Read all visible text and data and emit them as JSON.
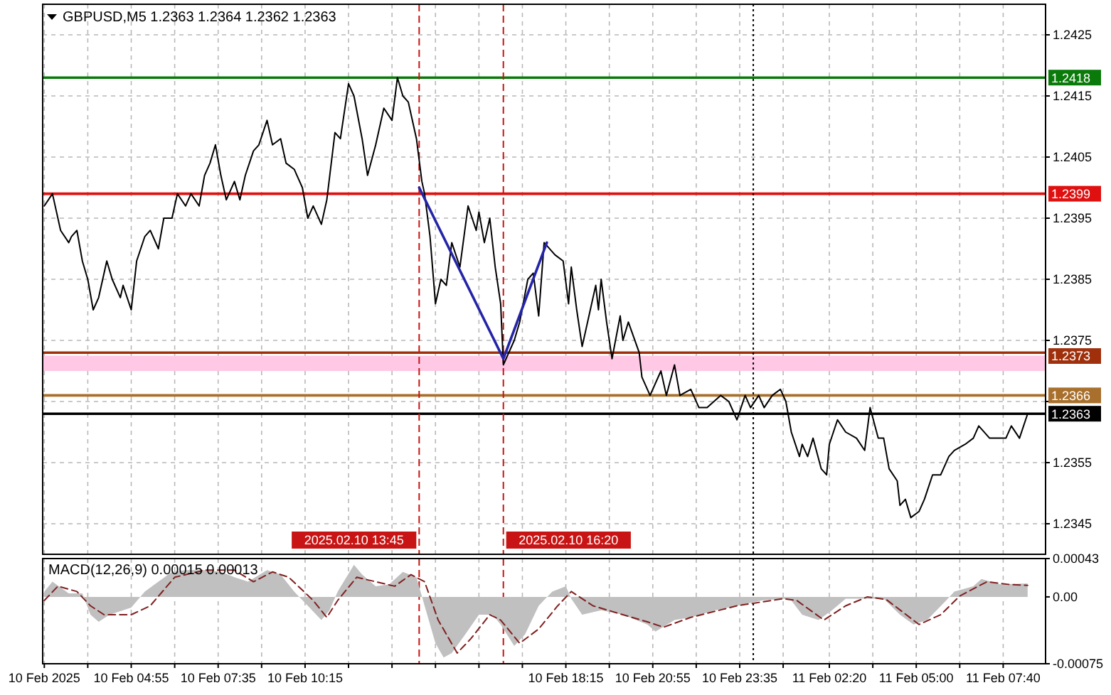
{
  "chart_data": [
    {
      "type": "line",
      "title": "GBPUSD,M5  1.2363 1.2364 1.2362 1.2363",
      "xlim": [
        "2025-02-10T02:12",
        "2025-02-11T08:58"
      ],
      "ylim": [
        1.234,
        1.243
      ],
      "yticks": [
        1.2345,
        1.2355,
        {
          "value": 1.2365,
          "label": null
        },
        1.2375,
        1.2385,
        1.2395,
        1.2405,
        1.2415,
        1.2425
      ],
      "xticks": [
        {
          "value": "2025-02-10T02:15",
          "label": null
        },
        {
          "value": "2025-02-10T03:35",
          "label": null
        },
        {
          "value": "2025-02-10T04:55",
          "label": null
        },
        {
          "value": "2025-02-10T06:15",
          "label": null
        },
        {
          "value": "2025-02-10T07:35",
          "label": null
        },
        {
          "value": "2025-02-10T08:55",
          "label": null
        },
        {
          "value": "2025-02-10T10:15",
          "label": null
        },
        {
          "value": "2025-02-10T11:35",
          "label": null
        },
        {
          "value": "2025-02-10T12:55",
          "label": null
        },
        {
          "value": "2025-02-10T14:15",
          "label": null
        },
        {
          "value": "2025-02-10T15:35",
          "label": null
        },
        {
          "value": "2025-02-10T16:55",
          "label": null
        },
        {
          "value": "2025-02-10T18:15",
          "label": null
        },
        {
          "value": "2025-02-10T19:35",
          "label": null
        },
        {
          "value": "2025-02-10T20:55",
          "label": null
        },
        {
          "value": "2025-02-10T22:15",
          "label": null
        },
        {
          "value": "2025-02-10T23:35",
          "label": null
        },
        {
          "value": "2025-02-11T00:55",
          "label": null
        },
        {
          "value": "2025-02-11T02:20",
          "label": null
        },
        {
          "value": "2025-02-11T03:40",
          "label": null
        },
        {
          "value": "2025-02-11T05:00",
          "label": null
        },
        {
          "value": "2025-02-11T06:20",
          "label": null
        },
        {
          "value": "2025-02-11T07:40",
          "label": null
        }
      ],
      "tick_labels": "y",
      "grid": true,
      "series": [
        {
          "color": "#000000",
          "x": [
            "2025-02-10T02:15",
            "2025-02-10T02:30",
            "2025-02-10T02:45",
            "2025-02-10T03:00",
            "2025-02-10T03:05",
            "2025-02-10T03:15",
            "2025-02-10T03:25",
            "2025-02-10T03:35",
            "2025-02-10T03:45",
            "2025-02-10T03:55",
            "2025-02-10T04:10",
            "2025-02-10T04:20",
            "2025-02-10T04:35",
            "2025-02-10T04:40",
            "2025-02-10T04:55",
            "2025-02-10T05:05",
            "2025-02-10T05:20",
            "2025-02-10T05:30",
            "2025-02-10T05:45",
            "2025-02-10T05:55",
            "2025-02-10T06:10",
            "2025-02-10T06:20",
            "2025-02-10T06:35",
            "2025-02-10T06:45",
            "2025-02-10T07:00",
            "2025-02-10T07:10",
            "2025-02-10T07:20",
            "2025-02-10T07:30",
            "2025-02-10T07:40",
            "2025-02-10T07:50",
            "2025-02-10T08:05",
            "2025-02-10T08:15",
            "2025-02-10T08:25",
            "2025-02-10T08:40",
            "2025-02-10T08:50",
            "2025-02-10T09:05",
            "2025-02-10T09:15",
            "2025-02-10T09:30",
            "2025-02-10T09:40",
            "2025-02-10T09:55",
            "2025-02-10T10:00",
            "2025-02-10T10:10",
            "2025-02-10T10:20",
            "2025-02-10T10:30",
            "2025-02-10T10:45",
            "2025-02-10T10:55",
            "2025-02-10T11:10",
            "2025-02-10T11:20",
            "2025-02-10T11:35",
            "2025-02-10T11:45",
            "2025-02-10T12:00",
            "2025-02-10T12:10",
            "2025-02-10T12:25",
            "2025-02-10T12:40",
            "2025-02-10T12:55",
            "2025-02-10T13:05",
            "2025-02-10T13:15",
            "2025-02-10T13:25",
            "2025-02-10T13:40",
            "2025-02-10T13:50",
            "2025-02-10T13:55",
            "2025-02-10T14:05",
            "2025-02-10T14:15",
            "2025-02-10T14:25",
            "2025-02-10T14:35",
            "2025-02-10T14:45",
            "2025-02-10T15:00",
            "2025-02-10T15:15",
            "2025-02-10T15:30",
            "2025-02-10T15:35",
            "2025-02-10T15:45",
            "2025-02-10T15:55",
            "2025-02-10T16:05",
            "2025-02-10T16:15",
            "2025-02-10T16:20",
            "2025-02-10T16:40",
            "2025-02-10T16:50",
            "2025-02-10T17:05",
            "2025-02-10T17:15",
            "2025-02-10T17:25",
            "2025-02-10T17:35",
            "2025-02-10T17:55",
            "2025-02-10T18:10",
            "2025-02-10T18:20",
            "2025-02-10T18:25",
            "2025-02-10T18:35",
            "2025-02-10T18:45",
            "2025-02-10T19:00",
            "2025-02-10T19:10",
            "2025-02-10T19:15",
            "2025-02-10T19:20",
            "2025-02-10T19:30",
            "2025-02-10T19:40",
            "2025-02-10T19:55",
            "2025-02-10T20:00",
            "2025-02-10T20:10",
            "2025-02-10T20:30",
            "2025-02-10T20:35",
            "2025-02-10T20:50",
            "2025-02-10T21:10",
            "2025-02-10T21:20",
            "2025-02-10T21:35",
            "2025-02-10T21:45",
            "2025-02-10T22:05",
            "2025-02-10T22:20",
            "2025-02-10T22:35",
            "2025-02-10T23:00",
            "2025-02-10T23:15",
            "2025-02-10T23:30",
            "2025-02-10T23:45",
            "2025-02-10T23:55",
            "2025-02-11T00:10",
            "2025-02-11T00:20",
            "2025-02-11T00:35",
            "2025-02-11T00:50",
            "2025-02-11T01:00",
            "2025-02-11T01:10",
            "2025-02-11T01:25",
            "2025-02-11T01:30",
            "2025-02-11T01:40",
            "2025-02-11T01:50",
            "2025-02-11T02:05",
            "2025-02-11T02:15",
            "2025-02-11T02:20",
            "2025-02-11T02:35",
            "2025-02-11T02:50",
            "2025-02-11T03:10",
            "2025-02-11T03:25",
            "2025-02-11T03:35",
            "2025-02-11T03:50",
            "2025-02-11T04:00",
            "2025-02-11T04:10",
            "2025-02-11T04:25",
            "2025-02-11T04:30",
            "2025-02-11T04:40",
            "2025-02-11T04:50",
            "2025-02-11T05:05",
            "2025-02-11T05:15",
            "2025-02-11T05:30",
            "2025-02-11T05:45",
            "2025-02-11T06:00",
            "2025-02-11T06:10",
            "2025-02-11T06:30",
            "2025-02-11T06:45",
            "2025-02-11T06:55",
            "2025-02-11T07:15",
            "2025-02-11T07:30",
            "2025-02-11T07:45",
            "2025-02-11T07:55",
            "2025-02-11T08:10",
            "2025-02-11T08:25"
          ],
          "values": [
            1.2397,
            1.2399,
            1.2393,
            1.2391,
            1.2392,
            1.2393,
            1.2388,
            1.2385,
            1.238,
            1.2382,
            1.2388,
            1.2385,
            1.2382,
            1.2384,
            1.238,
            1.2388,
            1.2392,
            1.2393,
            1.239,
            1.2395,
            1.2395,
            1.2399,
            1.2397,
            1.2399,
            1.2397,
            1.2402,
            1.2404,
            1.2407,
            1.2402,
            1.2398,
            1.2401,
            1.2398,
            1.2402,
            1.2406,
            1.2407,
            1.2411,
            1.2407,
            1.2408,
            1.2404,
            1.2403,
            1.2402,
            1.24,
            1.2395,
            1.2397,
            1.2394,
            1.2398,
            1.2409,
            1.2408,
            1.2417,
            1.2415,
            1.2408,
            1.2402,
            1.2407,
            1.2413,
            1.2411,
            1.2418,
            1.2415,
            1.2414,
            1.2408,
            1.2401,
            1.2399,
            1.2392,
            1.2381,
            1.2385,
            1.2384,
            1.2391,
            1.2387,
            1.2397,
            1.2393,
            1.2396,
            1.2391,
            1.2395,
            1.2387,
            1.2381,
            1.2371,
            1.2375,
            1.2378,
            1.2385,
            1.2386,
            1.2379,
            1.2391,
            1.2389,
            1.2388,
            1.2381,
            1.2387,
            1.238,
            1.2374,
            1.238,
            1.2384,
            1.238,
            1.2385,
            1.2378,
            1.2372,
            1.2379,
            1.2375,
            1.2378,
            1.2373,
            1.2369,
            1.2366,
            1.237,
            1.2366,
            1.2371,
            1.2366,
            1.2367,
            1.2364,
            1.2364,
            1.2366,
            1.2365,
            1.2362,
            1.2366,
            1.2364,
            1.2366,
            1.2364,
            1.2366,
            1.2367,
            1.2365,
            1.236,
            1.2356,
            1.2358,
            1.2356,
            1.2359,
            1.2354,
            1.2353,
            1.2358,
            1.2362,
            1.236,
            1.2359,
            1.2357,
            1.2364,
            1.2359,
            1.2359,
            1.2354,
            1.2352,
            1.2348,
            1.2349,
            1.2346,
            1.2347,
            1.2349,
            1.2353,
            1.2353,
            1.2356,
            1.2357,
            1.2358,
            1.2359,
            1.2361,
            1.2359,
            1.2359,
            1.2359,
            1.2361,
            1.2359,
            1.2363
          ]
        },
        {
          "color": "#2424a8",
          "x": [
            "2025-02-10T13:45",
            "2025-02-10T16:20",
            "2025-02-10T17:40"
          ],
          "values": [
            1.24,
            1.2372,
            1.2391
          ]
        }
      ],
      "bands": [
        {
          "axis": "y",
          "from": 1.237,
          "to": 1.23725,
          "color": "#ffc8e4"
        }
      ],
      "ref_lines": [
        {
          "axis": "y",
          "value": 1.2418,
          "label": "1.2418",
          "color": "#0a7a0a"
        },
        {
          "axis": "y",
          "value": 1.2399,
          "label": "1.2399",
          "color": "#e01010"
        },
        {
          "axis": "y",
          "value": 1.2373,
          "label": "1.2373",
          "color": "#a0300c"
        },
        {
          "axis": "y",
          "value": 1.2366,
          "label": "1.2366",
          "color": "#a8702c"
        },
        {
          "axis": "y",
          "value": 1.2363,
          "label": "1.2363",
          "color": "#000000"
        },
        {
          "axis": "x",
          "value": "2025-02-10T13:45",
          "label": "2025.02.10 13:45",
          "color": "#c81414",
          "line_style": "dashed"
        },
        {
          "axis": "x",
          "value": "2025-02-10T16:20",
          "label": "2025.02.10 16:20",
          "color": "#c81414",
          "line_style": "dashed"
        },
        {
          "axis": "x",
          "value": "2025-02-11T00:00",
          "color": "#000000",
          "line_style": "dotted"
        }
      ]
    },
    {
      "type": "line",
      "title": "MACD(12,26,9) 0.00015 0.00013",
      "xlim": [
        "2025-02-10T02:12",
        "2025-02-11T08:58"
      ],
      "ylim": [
        -0.00075,
        0.00043
      ],
      "yticks": [
        -0.00075,
        {
          "value": 0,
          "label": "0.00"
        },
        0.00043
      ],
      "xticks": [
        {
          "value": "2025-02-10T02:15",
          "label": "10 Feb 2025"
        },
        {
          "value": "2025-02-10T03:35",
          "label": null
        },
        {
          "value": "2025-02-10T04:55",
          "label": "10 Feb 04:55"
        },
        {
          "value": "2025-02-10T06:15",
          "label": null
        },
        {
          "value": "2025-02-10T07:35",
          "label": "10 Feb 07:35"
        },
        {
          "value": "2025-02-10T08:55",
          "label": null
        },
        {
          "value": "2025-02-10T10:15",
          "label": "10 Feb 10:15"
        },
        {
          "value": "2025-02-10T11:35",
          "label": null
        },
        {
          "value": "2025-02-10T12:55",
          "label": null
        },
        {
          "value": "2025-02-10T14:15",
          "label": null
        },
        {
          "value": "2025-02-10T15:35",
          "label": null
        },
        {
          "value": "2025-02-10T16:55",
          "label": null
        },
        {
          "value": "2025-02-10T18:15",
          "label": "10 Feb 18:15"
        },
        {
          "value": "2025-02-10T19:35",
          "label": null
        },
        {
          "value": "2025-02-10T20:55",
          "label": "10 Feb 20:55"
        },
        {
          "value": "2025-02-10T22:15",
          "label": null
        },
        {
          "value": "2025-02-10T23:35",
          "label": "10 Feb 23:35"
        },
        {
          "value": "2025-02-11T00:55",
          "label": null
        },
        {
          "value": "2025-02-11T02:20",
          "label": "11 Feb 02:20"
        },
        {
          "value": "2025-02-11T03:40",
          "label": null
        },
        {
          "value": "2025-02-11T05:00",
          "label": "11 Feb 05:00"
        },
        {
          "value": "2025-02-11T06:20",
          "label": null
        },
        {
          "value": "2025-02-11T07:40",
          "label": "11 Feb 07:40"
        }
      ],
      "grid": "x",
      "series": [
        {
          "type": "area",
          "color": "#c0c0c0",
          "x": [
            "2025-02-10T02:15",
            "2025-02-10T02:30",
            "2025-02-10T03:00",
            "2025-02-10T03:25",
            "2025-02-10T03:40",
            "2025-02-10T03:55",
            "2025-02-10T04:15",
            "2025-02-10T04:55",
            "2025-02-10T05:20",
            "2025-02-10T05:45",
            "2025-02-10T06:10",
            "2025-02-10T06:35",
            "2025-02-10T07:10",
            "2025-02-10T07:40",
            "2025-02-10T08:05",
            "2025-02-10T08:30",
            "2025-02-10T09:05",
            "2025-02-10T09:30",
            "2025-02-10T09:55",
            "2025-02-10T10:20",
            "2025-02-10T10:45",
            "2025-02-10T11:00",
            "2025-02-10T11:15",
            "2025-02-10T11:45",
            "2025-02-10T12:00",
            "2025-02-10T12:25",
            "2025-02-10T12:50",
            "2025-02-10T13:15",
            "2025-02-10T13:40",
            "2025-02-10T13:55",
            "2025-02-10T14:15",
            "2025-02-10T14:30",
            "2025-02-10T14:45",
            "2025-02-10T15:10",
            "2025-02-10T15:35",
            "2025-02-10T16:00",
            "2025-02-10T16:15",
            "2025-02-10T16:40",
            "2025-02-10T17:00",
            "2025-02-10T17:25",
            "2025-02-10T17:50",
            "2025-02-10T18:15",
            "2025-02-10T18:25",
            "2025-02-10T18:45",
            "2025-02-10T19:20",
            "2025-02-10T20:00",
            "2025-02-10T20:45",
            "2025-02-10T21:00",
            "2025-02-10T21:35",
            "2025-02-10T22:05",
            "2025-02-10T22:50",
            "2025-02-10T23:30",
            "2025-02-11T00:15",
            "2025-02-11T00:55",
            "2025-02-11T01:10",
            "2025-02-11T01:30",
            "2025-02-11T02:00",
            "2025-02-11T02:25",
            "2025-02-11T02:50",
            "2025-02-11T03:25",
            "2025-02-11T04:00",
            "2025-02-11T04:30",
            "2025-02-11T04:55",
            "2025-02-11T05:20",
            "2025-02-11T05:55",
            "2025-02-11T06:10",
            "2025-02-11T06:45",
            "2025-02-11T07:00",
            "2025-02-11T07:35",
            "2025-02-11T08:25"
          ],
          "values": [
            6e-05,
            0.00017,
            4e-05,
            4e-05,
            -0.0002,
            -0.00028,
            -0.0002,
            -0.00012,
            6e-05,
            0.00017,
            0.00028,
            0.0003,
            0.0003,
            0.00028,
            0.00022,
            0.00017,
            0.0003,
            0.00025,
            6e-05,
            -0.0001,
            -0.00026,
            -0.00015,
            6e-05,
            0.00036,
            0.00025,
            0.00012,
            0.00014,
            0.00028,
            0.00022,
            -0.0001,
            -0.00052,
            -0.00068,
            -0.00063,
            -0.00042,
            -0.0002,
            -0.0002,
            -0.00031,
            -0.00055,
            -0.00042,
            -0.0001,
            6e-05,
            0.00012,
            -2e-05,
            -0.0002,
            -0.00015,
            -0.0002,
            -0.00031,
            -0.00039,
            -0.00026,
            -0.00023,
            -0.00015,
            -0.0001,
            -4e-05,
            -2e-05,
            -4e-05,
            -0.0002,
            -0.00026,
            -0.00015,
            -2e-05,
            -2e-05,
            -2e-05,
            -0.0002,
            -0.00031,
            -0.00026,
            -4e-05,
            6e-05,
            0.00012,
            0.0002,
            0.00014,
            0.00015
          ]
        },
        {
          "type": "line",
          "color": "#802020",
          "line_style": "dashed",
          "x": [
            "2025-02-10T02:15",
            "2025-02-10T02:40",
            "2025-02-10T03:15",
            "2025-02-10T03:40",
            "2025-02-10T04:05",
            "2025-02-10T04:55",
            "2025-02-10T05:30",
            "2025-02-10T06:15",
            "2025-02-10T07:10",
            "2025-02-10T08:05",
            "2025-02-10T08:40",
            "2025-02-10T09:15",
            "2025-02-10T09:45",
            "2025-02-10T10:30",
            "2025-02-10T10:55",
            "2025-02-10T11:15",
            "2025-02-10T11:50",
            "2025-02-10T12:25",
            "2025-02-10T13:00",
            "2025-02-10T13:30",
            "2025-02-10T13:55",
            "2025-02-10T14:20",
            "2025-02-10T14:55",
            "2025-02-10T15:20",
            "2025-02-10T15:55",
            "2025-02-10T16:15",
            "2025-02-10T16:50",
            "2025-02-10T17:25",
            "2025-02-10T18:00",
            "2025-02-10T18:25",
            "2025-02-10T19:05",
            "2025-02-10T20:00",
            "2025-02-10T20:45",
            "2025-02-10T21:15",
            "2025-02-10T22:05",
            "2025-02-10T23:30",
            "2025-02-11T00:55",
            "2025-02-11T01:20",
            "2025-02-11T02:10",
            "2025-02-11T02:50",
            "2025-02-11T03:30",
            "2025-02-11T04:05",
            "2025-02-11T05:05",
            "2025-02-11T05:45",
            "2025-02-11T06:20",
            "2025-02-11T07:10",
            "2025-02-11T07:50",
            "2025-02-11T08:25"
          ],
          "values": [
            -4e-05,
            0.00012,
            6e-05,
            -0.0001,
            -0.0002,
            -0.0002,
            -0.0001,
            0.00022,
            0.0003,
            0.0003,
            0.00017,
            0.00028,
            0.00022,
            -4e-05,
            -0.00023,
            -4e-05,
            0.00022,
            0.00017,
            0.00012,
            0.00025,
            0.00017,
            -0.00026,
            -0.00063,
            -0.00047,
            -0.0002,
            -0.00026,
            -0.00052,
            -0.00036,
            -0.0001,
            6e-05,
            -0.0001,
            -0.0002,
            -0.00028,
            -0.00034,
            -0.00023,
            -0.0001,
            -2e-05,
            -4e-05,
            -0.00026,
            -0.0001,
            0,
            -3e-05,
            -0.00031,
            -0.0002,
            1e-05,
            0.00017,
            0.00014,
            0.00013
          ]
        }
      ],
      "ref_lines": [
        {
          "axis": "x",
          "value": "2025-02-10T13:45",
          "color": "#c81414",
          "line_style": "dashed"
        },
        {
          "axis": "x",
          "value": "2025-02-10T16:20",
          "color": "#c81414",
          "line_style": "dashed"
        },
        {
          "axis": "x",
          "value": "2025-02-11T00:00",
          "color": "#000000",
          "line_style": "dotted"
        }
      ]
    }
  ]
}
